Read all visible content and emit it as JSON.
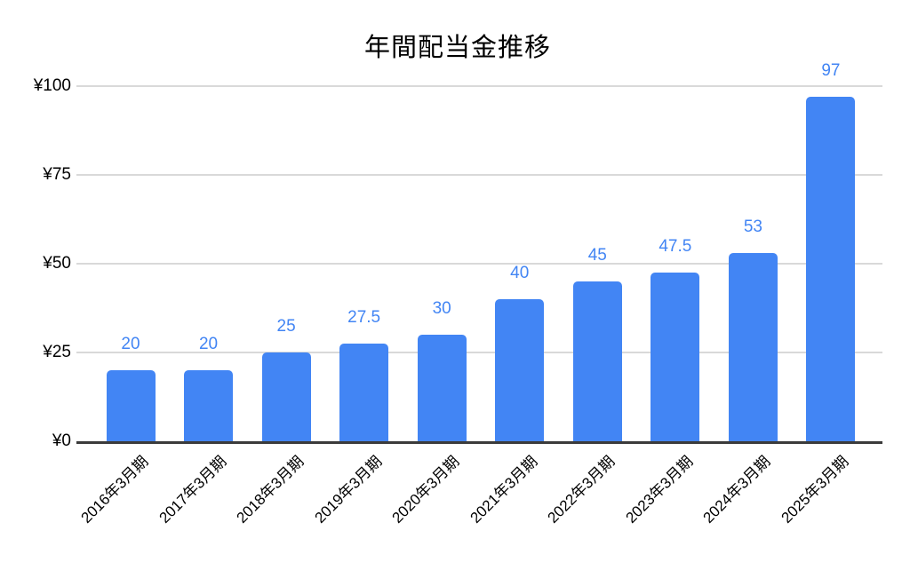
{
  "page": {
    "background_color": "#ffffff"
  },
  "chart_data": {
    "type": "bar",
    "title": "年間配当金推移",
    "categories": [
      "2016年3月期",
      "2017年3月期",
      "2018年3月期",
      "2019年3月期",
      "2020年3月期",
      "2021年3月期",
      "2022年3月期",
      "2023年3月期",
      "2024年3月期",
      "2025年3月期"
    ],
    "values": [
      20,
      20,
      25,
      27.5,
      30,
      40,
      45,
      47.5,
      53,
      97
    ],
    "value_labels": [
      "20",
      "20",
      "25",
      "27.5",
      "30",
      "40",
      "45",
      "47.5",
      "53",
      "97"
    ],
    "xlabel": "",
    "ylabel": "",
    "ylim": [
      0,
      100
    ],
    "y_ticks": [
      {
        "value": 0,
        "label": "¥0"
      },
      {
        "value": 25,
        "label": "¥25"
      },
      {
        "value": 50,
        "label": "¥50"
      },
      {
        "value": 75,
        "label": "¥75"
      },
      {
        "value": 100,
        "label": "¥100"
      }
    ],
    "grid": "horizontal gridlines on",
    "legend": "none",
    "x_label_rotation_deg": 45,
    "bar_color": "#4285F4",
    "value_label_color": "#4285F4",
    "axis_text_color": "#000000",
    "title_color": "#000000",
    "gridline_color": "#d9d9d9",
    "axis_line_color": "#3b3b3b"
  }
}
